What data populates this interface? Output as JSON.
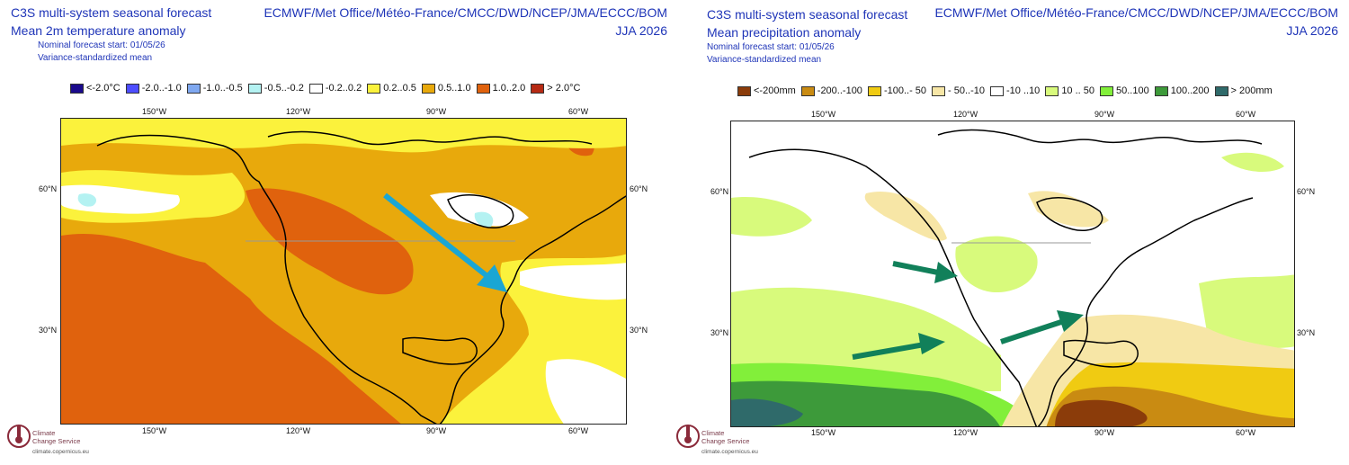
{
  "left": {
    "title_line1": "C3S multi-system seasonal forecast",
    "title_line2": "Mean 2m temperature anomaly",
    "subtitle_line1": "Nominal forecast start: 01/05/26",
    "subtitle_line2": "Variance-standardized mean",
    "centres": "ECMWF/Met Office/Météo-France/CMCC/DWD/NCEP/JMA/ECCC/BOM",
    "season": "JJA 2026",
    "legend": [
      {
        "label": "<-2.0°C",
        "color": "#1a0a8c"
      },
      {
        "label": "-2.0..-1.0",
        "color": "#4d4dff"
      },
      {
        "label": "-1.0..-0.5",
        "color": "#7fa8f0"
      },
      {
        "label": "-0.5..-0.2",
        "color": "#b4f2f2"
      },
      {
        "label": "-0.2..0.2",
        "color": "#ffffff"
      },
      {
        "label": "0.2..0.5",
        "color": "#fbf23c"
      },
      {
        "label": "0.5..1.0",
        "color": "#e8a90c"
      },
      {
        "label": "1.0..2.0",
        "color": "#e0620d"
      },
      {
        "label": "> 2.0°C",
        "color": "#b62a14"
      }
    ],
    "lon_ticks": [
      "150°W",
      "120°W",
      "90°W",
      "60°W"
    ],
    "lat_ticks": [
      "60°N",
      "30°N"
    ]
  },
  "right": {
    "title_line1": "C3S multi-system seasonal forecast",
    "title_line2": "Mean precipitation anomaly",
    "subtitle_line1": "Nominal forecast start: 01/05/26",
    "subtitle_line2": "Variance-standardized mean",
    "centres": "ECMWF/Met Office/Météo-France/CMCC/DWD/NCEP/JMA/ECCC/BOM",
    "season": "JJA 2026",
    "legend": [
      {
        "label": "<-200mm",
        "color": "#8b3c0a"
      },
      {
        "label": "-200..-100",
        "color": "#c98b12"
      },
      {
        "label": "-100..- 50",
        "color": "#f0cb12"
      },
      {
        "label": "- 50..-10",
        "color": "#f7e6a6"
      },
      {
        "label": "-10 ..10",
        "color": "#ffffff"
      },
      {
        "label": "10 .. 50",
        "color": "#d8fa7c"
      },
      {
        "label": "50..100",
        "color": "#82ef3a"
      },
      {
        "label": "100..200",
        "color": "#3d9a3a"
      },
      {
        "label": "> 200mm",
        "color": "#2f6a6a"
      }
    ],
    "lon_ticks": [
      "150°W",
      "120°W",
      "90°W",
      "60°W"
    ],
    "lat_ticks": [
      "60°N",
      "30°N"
    ]
  },
  "logo": {
    "line1": "Climate",
    "line2": "Change Service",
    "url": "climate.copernicus.eu"
  },
  "colors": {
    "temp_base": "#e8a90c",
    "arrow_temp": "#1aa6d4",
    "arrow_precip": "#11805a"
  }
}
